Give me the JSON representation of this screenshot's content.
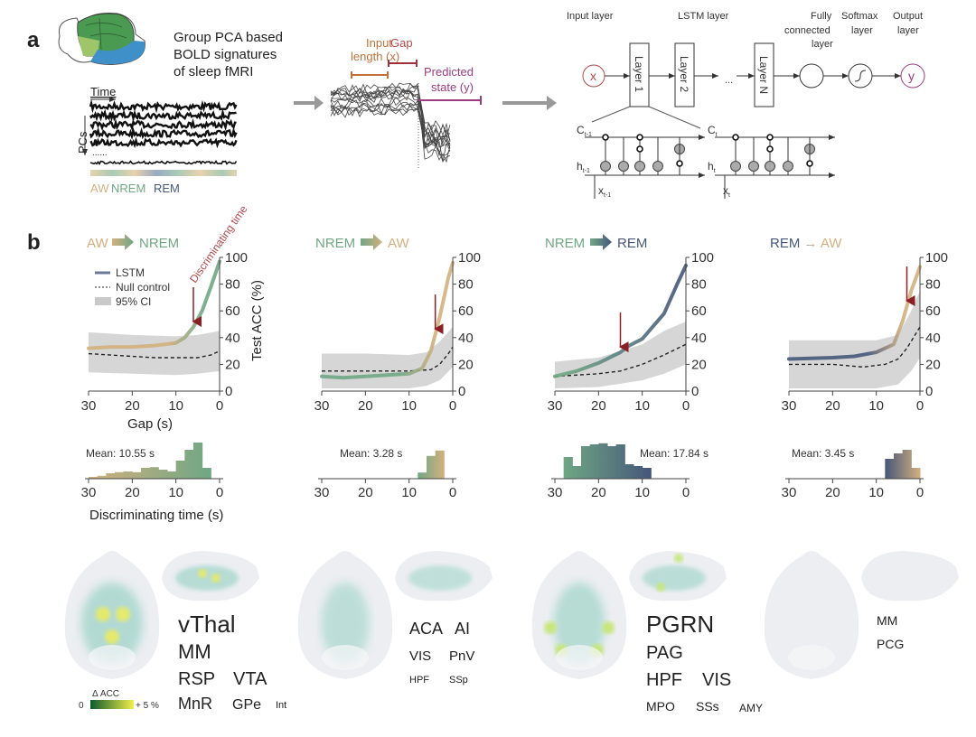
{
  "colors": {
    "AW": "#d2b07e",
    "NREM": "#6fa784",
    "REM": "#46577a",
    "arrow": "#8b1f24",
    "ci": "#d6d6d6",
    "null": "#222222",
    "accent_red": "#b5484c",
    "purple": "#9b3b83",
    "orange": "#c0703a"
  },
  "panel_a": {
    "label": "a",
    "header_lines": [
      "Group PCA based",
      "BOLD signatures",
      "of sleep fMRI"
    ],
    "time_label": "Time",
    "pcs_label": "PCs",
    "dots": "......",
    "states": [
      "AW",
      "NREM",
      "REM"
    ],
    "input_lines": [
      "Input",
      "length (x)"
    ],
    "gap_label": "Gap",
    "predicted_lines": [
      "Predicted",
      "state (y)"
    ],
    "network": {
      "input_layer": "Input layer",
      "lstm_layer": "LSTM layer",
      "fc_lines": [
        "Fully",
        "connected",
        "layer"
      ],
      "softmax_lines": [
        "Softmax",
        "layer"
      ],
      "output_lines": [
        "Output",
        "layer"
      ],
      "x": "x",
      "y": "y",
      "layers": [
        "Layer 1",
        "Layer 2",
        "Layer N"
      ],
      "ellipsis": "...",
      "cell": {
        "c_prev": "C",
        "c_prev_sub": "t-1",
        "c_next": "C",
        "c_next_sub": "t",
        "h_prev": "h",
        "h_prev_sub": "t-1",
        "h_next": "h",
        "h_next_sub": "t",
        "x_prev": "x",
        "x_prev_sub": "t-1",
        "x_next": "x",
        "x_next_sub": "t"
      }
    }
  },
  "panel_b": {
    "label": "b",
    "legend": {
      "lstm": "LSTM",
      "null": "Null control",
      "ci": "95% CI"
    },
    "discriminating_annotation": "Discriminating time",
    "ylabel": "Test ACC (%)",
    "xlabel": "Gap (s)",
    "hist_xlabel": "Discriminating time (s)",
    "transitions": [
      {
        "from": "AW",
        "to": "NREM"
      },
      {
        "from": "NREM",
        "to": "AW"
      },
      {
        "from": "NREM",
        "to": "REM"
      },
      {
        "from": "REM",
        "to": "AW"
      }
    ]
  },
  "chart_data": [
    {
      "type": "line",
      "title": "AW → NREM",
      "xlabel": "Gap (s)",
      "ylabel": "Test ACC (%)",
      "xlim": [
        30,
        0
      ],
      "ylim": [
        0,
        100
      ],
      "xticks": [
        "30",
        "20",
        "10",
        "0"
      ],
      "yticks": [
        "0",
        "20",
        "40",
        "60",
        "80",
        "100"
      ],
      "series": [
        {
          "name": "LSTM",
          "x": [
            30,
            25,
            20,
            15,
            10,
            8,
            6,
            4,
            2,
            0
          ],
          "y": [
            32,
            33,
            33,
            34,
            36,
            40,
            48,
            60,
            78,
            97
          ]
        },
        {
          "name": "Null control",
          "x": [
            30,
            25,
            20,
            15,
            10,
            5,
            2,
            0
          ],
          "y": [
            28,
            27,
            26,
            25,
            25,
            25,
            27,
            30
          ]
        }
      ],
      "ci": {
        "name": "95% CI",
        "x": [
          30,
          20,
          10,
          5,
          0
        ],
        "lower": [
          14,
          13,
          12,
          13,
          15
        ],
        "upper": [
          44,
          42,
          41,
          42,
          45
        ]
      },
      "discriminating_time_marker": 6,
      "gradient": [
        "AW",
        "NREM"
      ]
    },
    {
      "type": "line",
      "title": "NREM → AW",
      "xlim": [
        30,
        0
      ],
      "ylim": [
        0,
        100
      ],
      "xticks": [
        "30",
        "20",
        "10",
        "0"
      ],
      "yticks": [
        "0",
        "20",
        "40",
        "60",
        "80",
        "100"
      ],
      "series": [
        {
          "name": "LSTM",
          "x": [
            30,
            25,
            20,
            10,
            7,
            5,
            3,
            1,
            0
          ],
          "y": [
            11,
            10,
            11,
            13,
            17,
            30,
            55,
            85,
            96
          ]
        },
        {
          "name": "Null control",
          "x": [
            30,
            20,
            10,
            5,
            3,
            1,
            0
          ],
          "y": [
            15,
            15,
            15,
            16,
            20,
            28,
            33
          ]
        }
      ],
      "ci": {
        "x": [
          30,
          20,
          10,
          6,
          3,
          0
        ],
        "lower": [
          2,
          2,
          2,
          4,
          8,
          18
        ],
        "upper": [
          28,
          28,
          27,
          29,
          37,
          48
        ]
      },
      "discriminating_time_marker": 4,
      "gradient": [
        "NREM",
        "AW"
      ]
    },
    {
      "type": "line",
      "title": "NREM → REM",
      "xlim": [
        30,
        0
      ],
      "ylim": [
        0,
        100
      ],
      "xticks": [
        "30",
        "20",
        "10",
        "0"
      ],
      "yticks": [
        "0",
        "20",
        "40",
        "60",
        "80",
        "100"
      ],
      "series": [
        {
          "name": "LSTM",
          "x": [
            30,
            25,
            20,
            15,
            13,
            10,
            5,
            2,
            0
          ],
          "y": [
            11,
            15,
            21,
            29,
            34,
            39,
            58,
            80,
            94
          ]
        },
        {
          "name": "Null control",
          "x": [
            30,
            25,
            20,
            15,
            10,
            5,
            0
          ],
          "y": [
            11,
            12,
            13,
            15,
            20,
            27,
            35
          ]
        }
      ],
      "ci": {
        "x": [
          30,
          20,
          10,
          5,
          0
        ],
        "lower": [
          2,
          3,
          8,
          13,
          20
        ],
        "upper": [
          22,
          25,
          35,
          45,
          52
        ]
      },
      "discriminating_time_marker": 15,
      "gradient": [
        "NREM",
        "REM"
      ]
    },
    {
      "type": "line",
      "title": "REM → AW",
      "xlim": [
        30,
        0
      ],
      "ylim": [
        0,
        100
      ],
      "xticks": [
        "30",
        "20",
        "10",
        "0"
      ],
      "yticks": [
        "0",
        "20",
        "40",
        "60",
        "80",
        "100"
      ],
      "series": [
        {
          "name": "LSTM",
          "x": [
            30,
            20,
            15,
            10,
            6,
            4,
            2,
            0
          ],
          "y": [
            24,
            25,
            26,
            29,
            35,
            52,
            75,
            93
          ]
        },
        {
          "name": "Null control",
          "x": [
            30,
            20,
            13,
            8,
            5,
            3,
            0
          ],
          "y": [
            20,
            20,
            18,
            20,
            24,
            32,
            48
          ]
        }
      ],
      "ci": {
        "x": [
          30,
          10,
          5,
          2,
          0
        ],
        "lower": [
          2,
          2,
          5,
          15,
          25
        ],
        "upper": [
          38,
          38,
          42,
          60,
          75
        ]
      },
      "discriminating_time_marker": 3,
      "gradient": [
        "REM",
        "AW"
      ]
    },
    {
      "type": "bar",
      "title": "",
      "xlabel": "Discriminating time (s)",
      "annotation": "Mean: 10.55 s",
      "xlim": [
        30,
        0
      ],
      "xticks": [
        "30",
        "20",
        "10",
        "0"
      ],
      "bin_edges": [
        30,
        28,
        26,
        24,
        22,
        20,
        18,
        16,
        14,
        12,
        10,
        8,
        6,
        4,
        2
      ],
      "values": [
        0.05,
        0.08,
        0.15,
        0.18,
        0.2,
        0.18,
        0.3,
        0.32,
        0.25,
        0.2,
        0.5,
        0.8,
        1.0,
        0.3
      ],
      "gradient": [
        "AW",
        "NREM"
      ]
    },
    {
      "type": "bar",
      "annotation": "Mean: 3.28 s",
      "xlim": [
        30,
        0
      ],
      "xticks": [
        "30",
        "20",
        "10",
        "0"
      ],
      "bin_edges": [
        8,
        6,
        4,
        2
      ],
      "values": [
        0.17,
        0.63,
        0.78
      ],
      "gradient": [
        "NREM",
        "AW"
      ]
    },
    {
      "type": "bar",
      "annotation": "Mean: 17.84 s",
      "xlim": [
        30,
        0
      ],
      "xticks": [
        "30",
        "20",
        "10",
        "0"
      ],
      "bin_edges": [
        28,
        26,
        24,
        22,
        20,
        18,
        16,
        14,
        12,
        10,
        8
      ],
      "values": [
        0.6,
        0.35,
        0.9,
        0.95,
        0.98,
        0.9,
        0.95,
        0.4,
        0.35,
        0.3
      ],
      "gradient": [
        "NREM",
        "REM"
      ]
    },
    {
      "type": "bar",
      "annotation": "Mean: 3.45 s",
      "xlim": [
        30,
        0
      ],
      "xticks": [
        "30",
        "20",
        "10",
        "0"
      ],
      "bin_edges": [
        8,
        6,
        4,
        2,
        0
      ],
      "values": [
        0.55,
        0.7,
        0.8,
        0.3
      ],
      "gradient": [
        "REM",
        "AW"
      ]
    }
  ],
  "brain_maps": {
    "colorbar": {
      "title": "Δ ACC",
      "min": "0",
      "max": "+ 5 %",
      "colors": [
        "#0d5a2c",
        "#f2ef4a"
      ]
    },
    "panels": [
      {
        "regions": [
          "vThal",
          "MM",
          "RSP",
          "VTA",
          "MnR",
          "GPe",
          "Int"
        ],
        "intensity": 0.9
      },
      {
        "regions": [
          "ACA",
          "AI",
          "VIS",
          "PnV",
          "HPF",
          "SSp"
        ],
        "intensity": 0.5
      },
      {
        "regions": [
          "PGRN",
          "PAG",
          "HPF",
          "VIS",
          "MPO",
          "SSs",
          "AMY"
        ],
        "intensity": 0.75
      },
      {
        "regions": [
          "MM",
          "PCG"
        ],
        "intensity": 0.05
      }
    ]
  }
}
